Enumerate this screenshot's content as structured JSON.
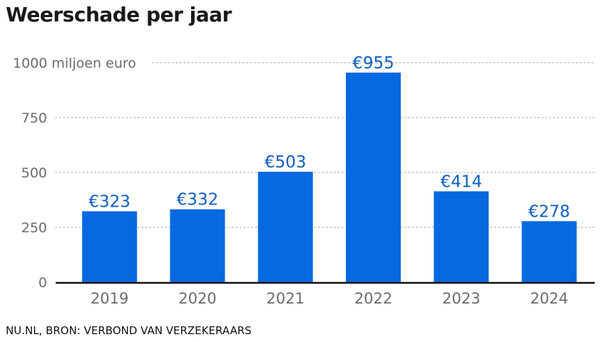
{
  "title": "Weerschade per jaar",
  "source": "NU.NL, BRON: VERBOND VAN VERZEKERAARS",
  "colors": {
    "bar": "#0769e0",
    "label": "#0d5ec2",
    "axis_text": "#6b6b6b",
    "grid": "#bdbdbd",
    "baseline": "#111111"
  },
  "chart_data": {
    "type": "bar",
    "title": "Weerschade per jaar",
    "categories": [
      "2019",
      "2020",
      "2021",
      "2022",
      "2023",
      "2024"
    ],
    "values": [
      323,
      332,
      503,
      955,
      414,
      278
    ],
    "data_labels": [
      "€323",
      "€332",
      "€503",
      "€955",
      "€414",
      "€278"
    ],
    "yticks": [
      0,
      250,
      500,
      750,
      1000
    ],
    "ytick_labels": [
      "0",
      "250",
      "500",
      "750",
      "1000 miljoen euro"
    ],
    "ylim": [
      0,
      1000
    ],
    "xlabel": "",
    "ylabel": "",
    "grid": true
  }
}
